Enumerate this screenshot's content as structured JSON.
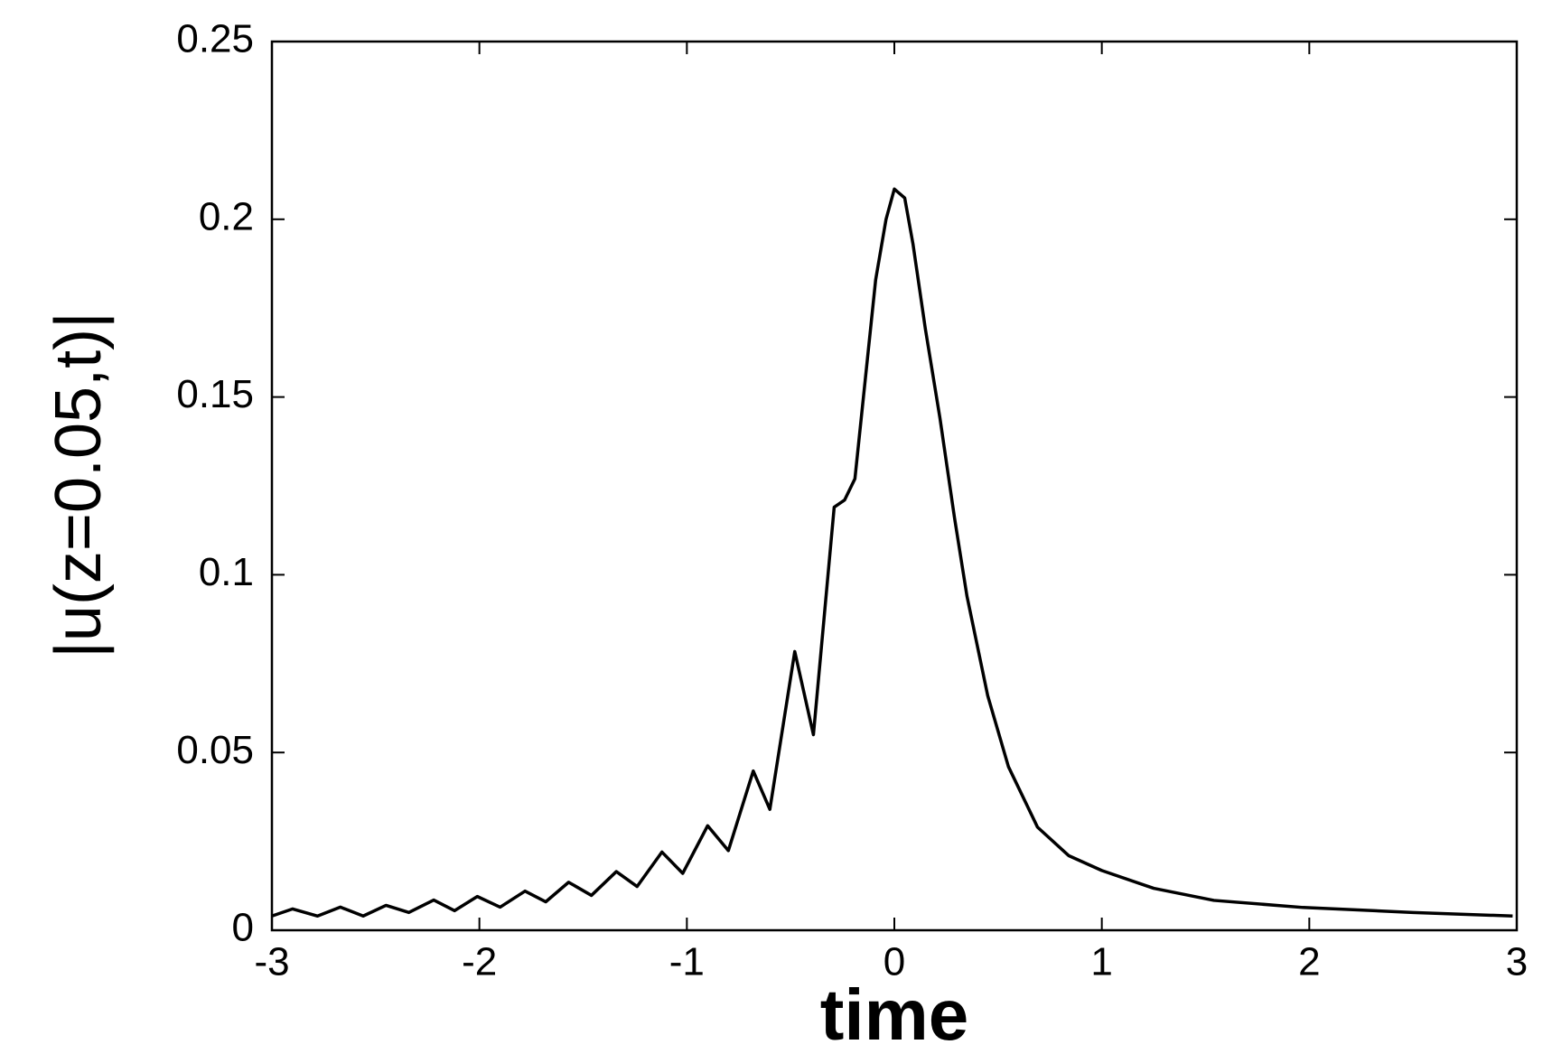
{
  "chart_data": {
    "type": "line",
    "xlabel": "time",
    "ylabel": "|u(z=0.05,t)|",
    "color": "#000000",
    "x": [
      -3,
      -2.9,
      -2.78,
      -2.67,
      -2.56,
      -2.45,
      -2.34,
      -2.22,
      -2.12,
      -2.01,
      -1.9,
      -1.78,
      -1.68,
      -1.57,
      -1.46,
      -1.34,
      -1.24,
      -1.12,
      -1.02,
      -0.9,
      -0.8,
      -0.68,
      -0.6,
      -0.48,
      -0.39,
      -0.29,
      -0.24,
      -0.19,
      -0.14,
      -0.09,
      -0.04,
      0,
      0.05,
      0.09,
      0.15,
      0.22,
      0.29,
      0.35,
      0.45,
      0.55,
      0.69,
      0.84,
      1,
      1.25,
      1.54,
      1.97,
      2.5,
      2.98
    ],
    "values": [
      0.004,
      0.006,
      0.004,
      0.0065,
      0.004,
      0.007,
      0.005,
      0.0085,
      0.0055,
      0.0095,
      0.0065,
      0.011,
      0.008,
      0.0135,
      0.0098,
      0.0165,
      0.0123,
      0.022,
      0.016,
      0.0294,
      0.0224,
      0.0448,
      0.034,
      0.0784,
      0.055,
      0.119,
      0.121,
      0.127,
      0.155,
      0.183,
      0.2,
      0.2085,
      0.206,
      0.193,
      0.169,
      0.144,
      0.116,
      0.094,
      0.066,
      0.046,
      0.029,
      0.021,
      0.0168,
      0.0118,
      0.0084,
      0.0064,
      0.005,
      0.004
    ],
    "xlim": [
      -3,
      3
    ],
    "xticks": [
      -3,
      -2,
      -1,
      0,
      1,
      2,
      3
    ],
    "ylim": [
      0,
      0.25
    ],
    "yticks": [
      0,
      0.05,
      0.1,
      0.15,
      0.2,
      0.25
    ]
  }
}
